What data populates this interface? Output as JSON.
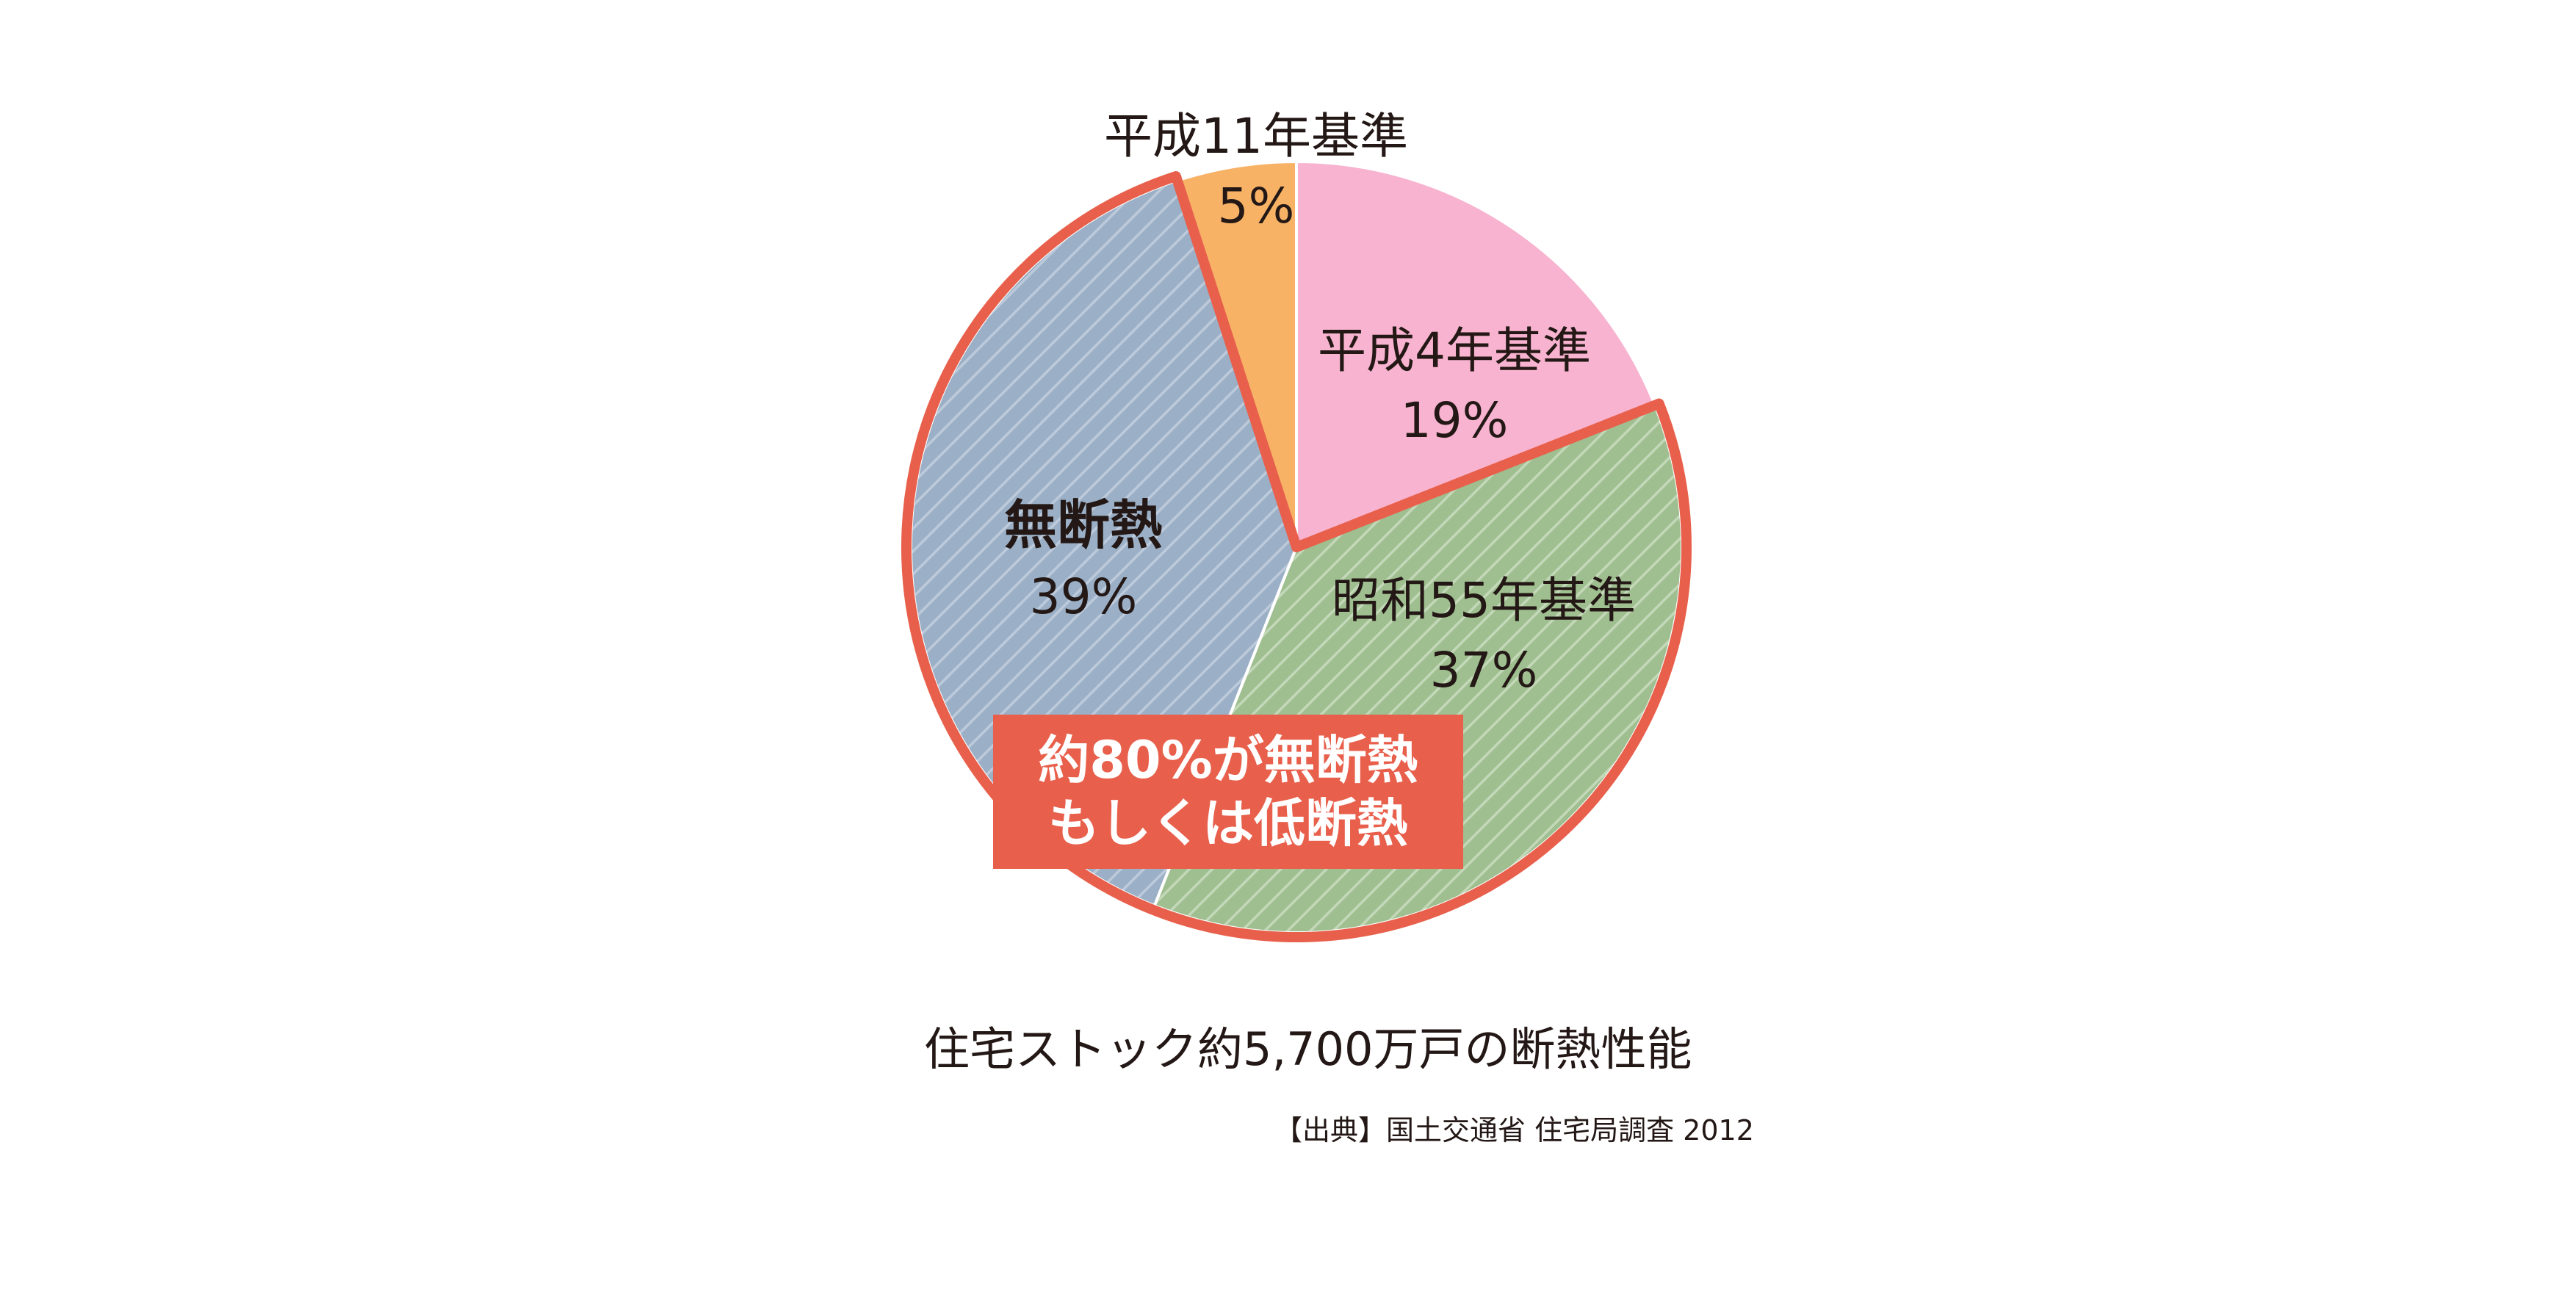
{
  "chart_data": {
    "type": "pie",
    "slices": [
      {
        "label": "平成4年基準",
        "value": 19,
        "value_label": "19%",
        "color": "#f7b3cf",
        "hatched": false
      },
      {
        "label": "昭和55年基準",
        "value": 37,
        "value_label": "37%",
        "color": "#9fbf90",
        "hatched": true
      },
      {
        "label": "無断熱",
        "value": 39,
        "value_label": "39%",
        "color": "#9bb0c6",
        "hatched": true
      },
      {
        "label": "平成11年基準",
        "value": 5,
        "value_label": "5%",
        "color": "#f7b266",
        "hatched": false
      }
    ],
    "start": "12 o'clock",
    "direction": "clockwise",
    "highlight": {
      "slices": [
        "昭和55年基準",
        "無断熱"
      ],
      "outline_color": "#e8604c",
      "callout": [
        "約80%が無断熱",
        "もしくは低断熱"
      ]
    },
    "caption": "住宅ストック約5,700万戸の断熱性能",
    "source": "【出典】国土交通省 住宅局調査 2012"
  }
}
